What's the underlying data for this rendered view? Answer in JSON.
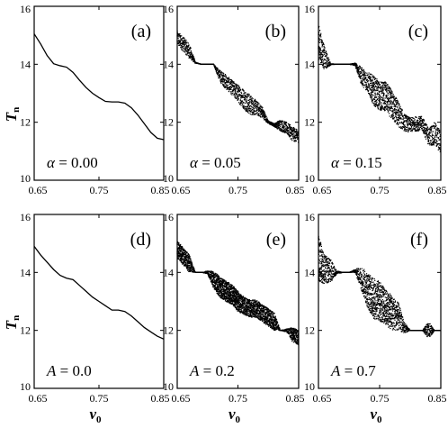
{
  "chart_data": [
    {
      "type": "line",
      "panel_label": "(a)",
      "param_symbol": "α",
      "param_value": "0.00",
      "ylabel": "T",
      "ylabel_sub": "n",
      "xlabel": "",
      "xlim": [
        0.65,
        0.85
      ],
      "ylim": [
        10,
        16
      ],
      "xticks": [
        "0.65",
        "0.75",
        "0.85"
      ],
      "yticks": [
        "10",
        "12",
        "14",
        "16"
      ],
      "x": [
        0.65,
        0.66,
        0.67,
        0.68,
        0.69,
        0.7,
        0.71,
        0.72,
        0.73,
        0.74,
        0.75,
        0.76,
        0.77,
        0.78,
        0.79,
        0.8,
        0.81,
        0.82,
        0.83,
        0.84,
        0.85
      ],
      "y": [
        15.05,
        14.7,
        14.3,
        14.02,
        13.95,
        13.9,
        13.72,
        13.45,
        13.2,
        13.0,
        12.85,
        12.72,
        12.7,
        12.7,
        12.66,
        12.5,
        12.25,
        11.95,
        11.65,
        11.45,
        11.4
      ]
    },
    {
      "type": "scatter",
      "panel_label": "(b)",
      "param_symbol": "α",
      "param_value": "0.05",
      "xlabel": "",
      "ylabel": "",
      "xlim": [
        0.65,
        0.85
      ],
      "ylim": [
        10,
        16
      ],
      "xticks": [
        "0.65",
        "0.75",
        "0.85"
      ],
      "yticks": [
        "10",
        "12",
        "14",
        "16"
      ],
      "x": [
        0.65,
        0.66,
        0.67,
        0.68,
        0.69,
        0.7,
        0.71,
        0.72,
        0.73,
        0.74,
        0.75,
        0.76,
        0.77,
        0.78,
        0.79,
        0.8,
        0.81,
        0.82,
        0.83,
        0.84,
        0.85
      ],
      "y": [
        14.9,
        14.7,
        14.45,
        14.05,
        14.0,
        14.0,
        14.0,
        13.6,
        13.4,
        13.2,
        13.0,
        12.8,
        12.6,
        12.5,
        12.35,
        12.0,
        11.9,
        11.9,
        11.8,
        11.6,
        11.5
      ],
      "spread": [
        0.25,
        0.25,
        0.25,
        0.02,
        0.0,
        0.0,
        0.0,
        0.2,
        0.25,
        0.25,
        0.3,
        0.35,
        0.35,
        0.25,
        0.2,
        0.05,
        0.05,
        0.2,
        0.2,
        0.25,
        0.2
      ]
    },
    {
      "type": "scatter",
      "panel_label": "(c)",
      "param_symbol": "α",
      "param_value": "0.15",
      "xlabel": "",
      "ylabel": "",
      "xlim": [
        0.65,
        0.85
      ],
      "ylim": [
        10,
        16
      ],
      "xticks": [
        "0.65",
        "0.75",
        "0.85"
      ],
      "yticks": [
        "10",
        "12",
        "14",
        "16"
      ],
      "x": [
        0.65,
        0.66,
        0.67,
        0.68,
        0.69,
        0.7,
        0.71,
        0.72,
        0.73,
        0.74,
        0.75,
        0.76,
        0.77,
        0.78,
        0.79,
        0.8,
        0.81,
        0.82,
        0.83,
        0.84,
        0.85
      ],
      "y": [
        14.8,
        14.2,
        14.0,
        14.0,
        14.0,
        14.0,
        14.0,
        13.6,
        13.4,
        13.1,
        12.9,
        12.9,
        12.6,
        12.3,
        12.0,
        11.9,
        11.95,
        11.95,
        11.5,
        11.6,
        11.3
      ],
      "spread": [
        0.6,
        0.4,
        0.02,
        0.0,
        0.0,
        0.0,
        0.05,
        0.3,
        0.35,
        0.5,
        0.5,
        0.5,
        0.5,
        0.45,
        0.3,
        0.25,
        0.25,
        0.25,
        0.3,
        0.4,
        0.4
      ]
    },
    {
      "type": "line",
      "panel_label": "(d)",
      "param_symbol": "A",
      "param_value": "0.0",
      "ylabel": "T",
      "ylabel_sub": "n",
      "xlabel": "v",
      "xlabel_sub": "0",
      "xlim": [
        0.65,
        0.85
      ],
      "ylim": [
        10,
        16
      ],
      "xticks": [
        "0.65",
        "0.75",
        "0.85"
      ],
      "yticks": [
        "10",
        "12",
        "14",
        "16"
      ],
      "x": [
        0.65,
        0.66,
        0.67,
        0.68,
        0.69,
        0.7,
        0.71,
        0.72,
        0.73,
        0.74,
        0.75,
        0.76,
        0.77,
        0.78,
        0.79,
        0.8,
        0.81,
        0.82,
        0.83,
        0.84,
        0.85
      ],
      "y": [
        14.9,
        14.6,
        14.35,
        14.1,
        13.9,
        13.8,
        13.75,
        13.55,
        13.35,
        13.15,
        13.0,
        12.85,
        12.7,
        12.7,
        12.65,
        12.5,
        12.3,
        12.1,
        11.95,
        11.8,
        11.7
      ]
    },
    {
      "type": "scatter",
      "panel_label": "(e)",
      "param_symbol": "A",
      "param_value": "0.2",
      "xlabel": "v",
      "xlabel_sub": "0",
      "ylabel": "",
      "xlim": [
        0.65,
        0.85
      ],
      "ylim": [
        10,
        16
      ],
      "xticks": [
        "0.65",
        "0.75",
        "0.85"
      ],
      "yticks": [
        "10",
        "12",
        "14",
        "16"
      ],
      "x": [
        0.65,
        0.66,
        0.67,
        0.68,
        0.69,
        0.7,
        0.71,
        0.72,
        0.73,
        0.74,
        0.75,
        0.76,
        0.77,
        0.78,
        0.79,
        0.8,
        0.81,
        0.82,
        0.83,
        0.84,
        0.85
      ],
      "y": [
        14.8,
        14.55,
        14.3,
        14.0,
        14.0,
        14.0,
        13.75,
        13.5,
        13.35,
        13.25,
        13.0,
        12.85,
        12.75,
        12.75,
        12.6,
        12.45,
        12.3,
        12.0,
        12.0,
        11.85,
        11.75
      ],
      "spread": [
        0.3,
        0.3,
        0.3,
        0.0,
        0.0,
        0.05,
        0.3,
        0.35,
        0.35,
        0.35,
        0.35,
        0.3,
        0.3,
        0.3,
        0.3,
        0.3,
        0.3,
        0.0,
        0.05,
        0.25,
        0.25
      ]
    },
    {
      "type": "scatter",
      "panel_label": "(f)",
      "param_symbol": "A",
      "param_value": "0.7",
      "xlabel": "v",
      "xlabel_sub": "0",
      "ylabel": "",
      "xlim": [
        0.65,
        0.85
      ],
      "ylim": [
        10,
        16
      ],
      "xticks": [
        "0.65",
        "0.75",
        "0.85"
      ],
      "yticks": [
        "10",
        "12",
        "14",
        "16"
      ],
      "x": [
        0.65,
        0.66,
        0.67,
        0.68,
        0.69,
        0.7,
        0.71,
        0.72,
        0.73,
        0.74,
        0.75,
        0.76,
        0.77,
        0.78,
        0.79,
        0.8,
        0.81,
        0.82,
        0.83,
        0.84,
        0.85
      ],
      "y": [
        14.5,
        14.1,
        14.05,
        14.0,
        14.0,
        14.0,
        14.05,
        13.8,
        13.4,
        13.1,
        13.0,
        12.8,
        12.6,
        12.5,
        12.1,
        12.0,
        12.0,
        12.0,
        12.0,
        12.0,
        12.0
      ],
      "spread": [
        0.8,
        0.5,
        0.4,
        0.05,
        0.0,
        0.0,
        0.05,
        0.4,
        0.6,
        0.7,
        0.7,
        0.6,
        0.6,
        0.5,
        0.2,
        0.0,
        0.0,
        0.0,
        0.3,
        0.0,
        0.0
      ]
    }
  ]
}
